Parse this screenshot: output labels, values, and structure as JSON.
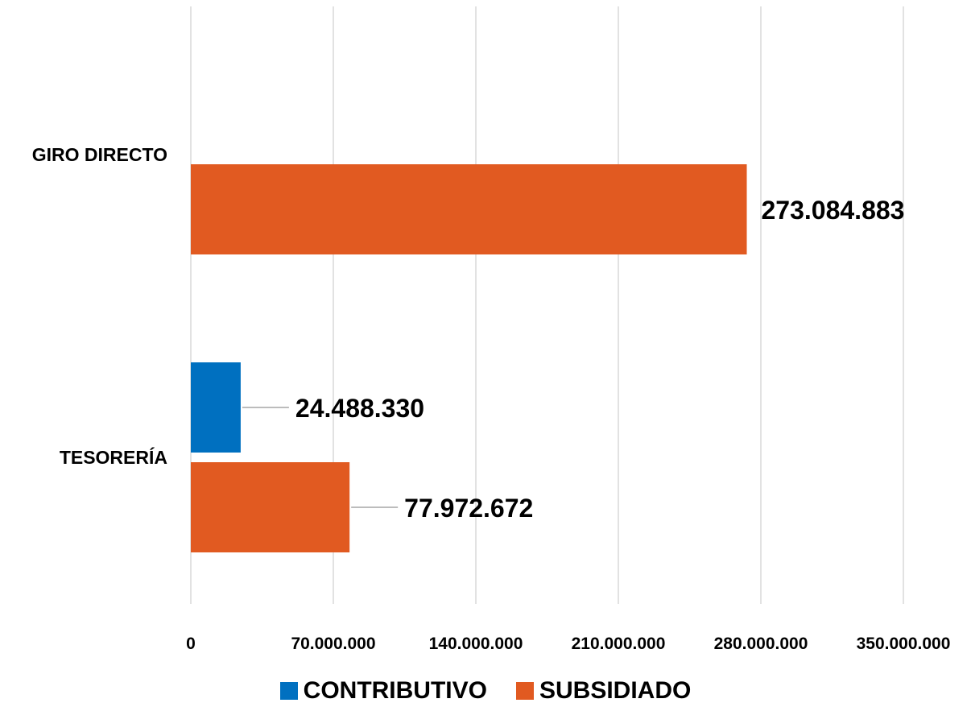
{
  "chart_data": {
    "type": "bar",
    "orientation": "horizontal",
    "categories": [
      "GIRO DIRECTO",
      "TESORERÍA"
    ],
    "series": [
      {
        "name": "CONTRIBUTIVO",
        "color": "#0070c0",
        "values": [
          null,
          24488330
        ],
        "labels": [
          "",
          "24.488.330"
        ]
      },
      {
        "name": "SUBSIDIADO",
        "color": "#e15a21",
        "values": [
          273084883,
          77972672
        ],
        "labels": [
          "273.084.883",
          "77.972.672"
        ]
      }
    ],
    "xlim": [
      0,
      350000000
    ],
    "xticks": [
      0,
      70000000,
      140000000,
      210000000,
      280000000,
      350000000
    ],
    "xtick_labels": [
      "0",
      "70.000.000",
      "140.000.000",
      "210.000.000",
      "280.000.000",
      "350.000.000"
    ],
    "grid": true,
    "legend_position": "bottom",
    "title": "",
    "xlabel": "",
    "ylabel": ""
  }
}
